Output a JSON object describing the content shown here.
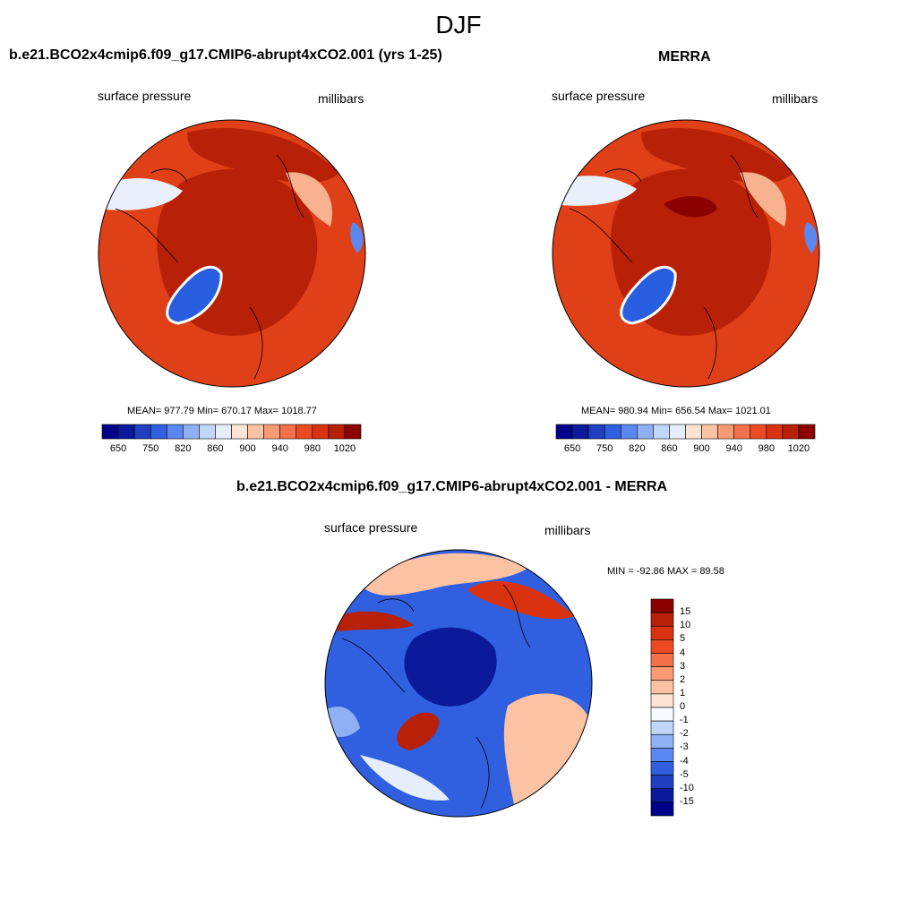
{
  "title": "DJF",
  "panels": [
    {
      "id": "model",
      "title": "b.e21.BCO2x4cmip6.f09_g17.CMIP6-abrupt4xCO2.001 (yrs 1-25)",
      "left_label": "surface pressure",
      "right_label": "millibars",
      "stats": "MEAN= 977.79  Min= 670.17  Max= 1018.77"
    },
    {
      "id": "obs",
      "title": "MERRA",
      "left_label": "surface pressure",
      "right_label": "millibars",
      "stats": "MEAN= 980.94  Min= 656.54  Max= 1021.01"
    },
    {
      "id": "diff",
      "title": "b.e21.BCO2x4cmip6.f09_g17.CMIP6-abrupt4xCO2.001 - MERRA",
      "left_label": "surface pressure",
      "right_label": "millibars",
      "stats": "MIN = -92.86 MAX =  89.58"
    }
  ],
  "colorbar_abs": {
    "colors": [
      "#00008b",
      "#0a1a9a",
      "#1f3fc0",
      "#3060e0",
      "#5a88f0",
      "#8fb0f5",
      "#c0d6fa",
      "#e6eefc",
      "#fde4d2",
      "#fbc2a4",
      "#f89a72",
      "#f4704a",
      "#ec4a24",
      "#d83210",
      "#b82008",
      "#8b0000"
    ],
    "tick_labels": [
      "650",
      "750",
      "820",
      "860",
      "900",
      "940",
      "980",
      "1020"
    ]
  },
  "colorbar_diff": {
    "colors": [
      "#8b0000",
      "#b82008",
      "#d83210",
      "#ec4a24",
      "#f4704a",
      "#f89a72",
      "#fbc2a4",
      "#fde4d2",
      "#f6f9ff",
      "#c0d6fa",
      "#8fb0f5",
      "#5a88f0",
      "#3060e0",
      "#1f3fc0",
      "#0a1a9a",
      "#00008b"
    ],
    "tick_labels": [
      "15",
      "10",
      "5",
      "4",
      "3",
      "2",
      "1",
      "0",
      "-1",
      "-2",
      "-3",
      "-4",
      "-5",
      "-10",
      "-15"
    ]
  },
  "map_colors": {
    "land_high": "#e04018",
    "ocean_high": "#b82008",
    "low": "#2a5ee0",
    "light_low": "#c8dcfa",
    "coast": "#000000"
  }
}
